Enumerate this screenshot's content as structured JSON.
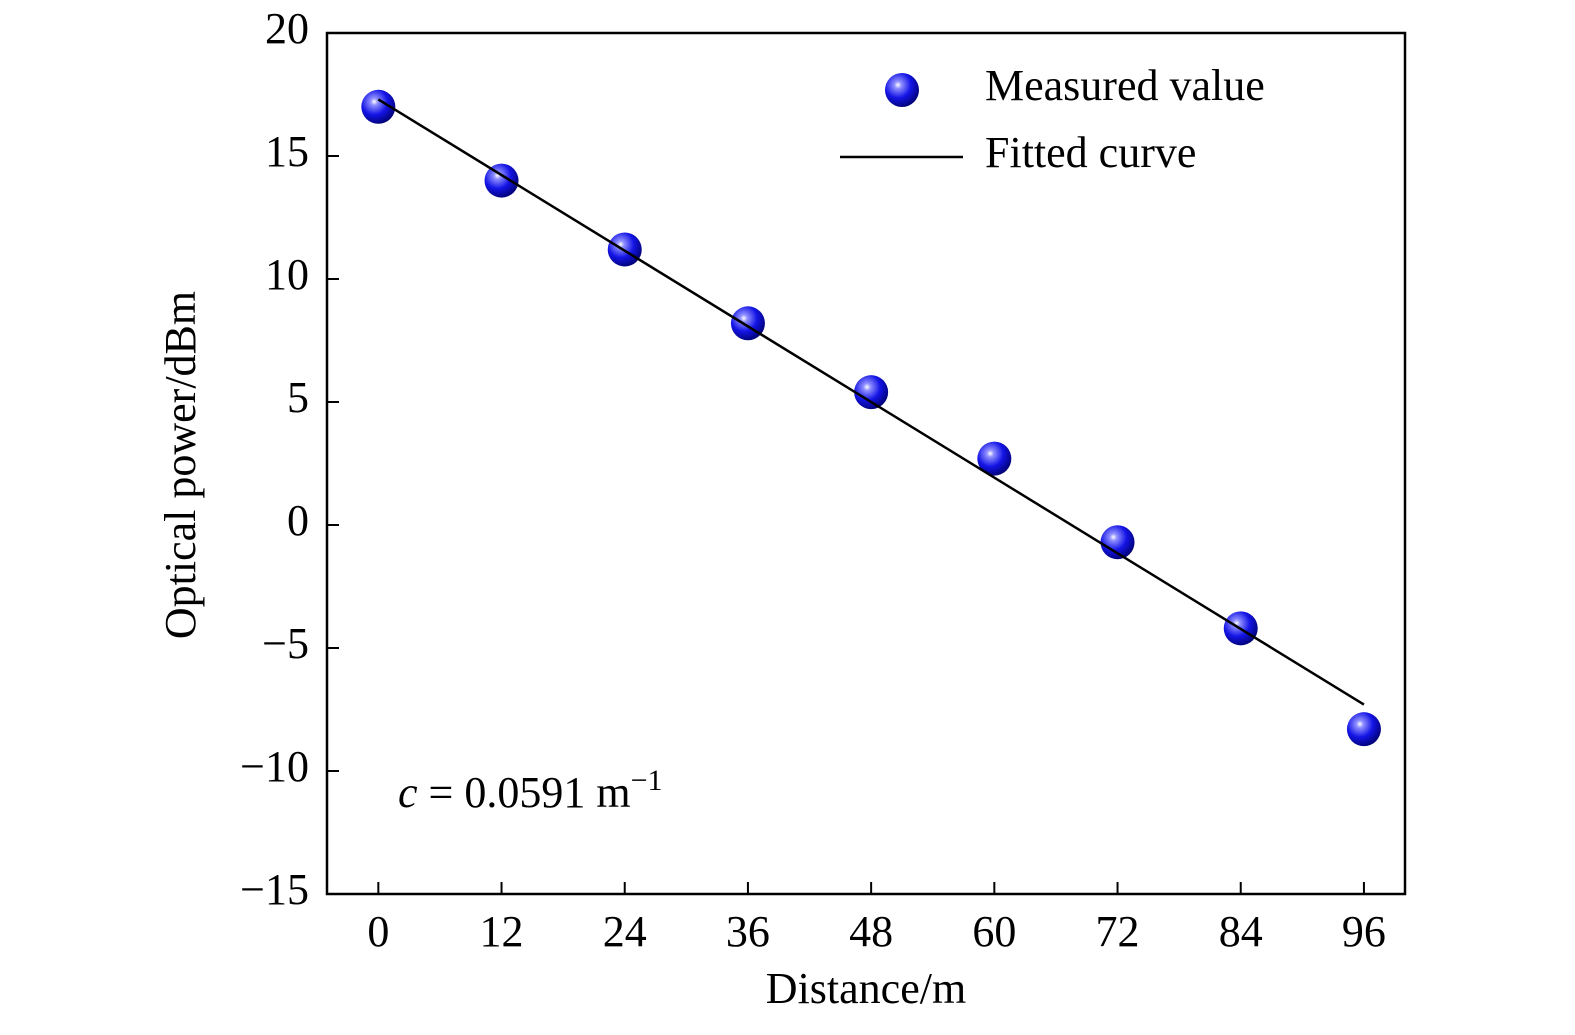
{
  "chart_data": {
    "type": "scatter",
    "xlabel": "Distance/m",
    "ylabel": "Optical power/dBm",
    "xlim": [
      -5,
      100
    ],
    "ylim": [
      -15,
      20
    ],
    "xticks": [
      0,
      12,
      24,
      36,
      48,
      60,
      72,
      84,
      96
    ],
    "yticks": [
      {
        "value": -15,
        "label": "−15"
      },
      {
        "value": -10,
        "label": "−10"
      },
      {
        "value": -5,
        "label": "−5"
      },
      0,
      5,
      10,
      15,
      20
    ],
    "legend": "upper right",
    "series": [
      {
        "name": "Measured value",
        "type": "scatter",
        "color": "#1414e6",
        "x": [
          0,
          12,
          24,
          36,
          48,
          60,
          72,
          84,
          96
        ],
        "values": [
          17.0,
          14.0,
          11.2,
          8.2,
          5.4,
          2.7,
          -0.7,
          -4.2,
          -8.3
        ]
      },
      {
        "name": "Fitted curve",
        "type": "line",
        "color": "#000000",
        "x": [
          0,
          96
        ],
        "values": [
          17.3,
          -7.3
        ]
      }
    ],
    "annotation": {
      "symbol": "c",
      "text": "= 0.0591 m",
      "exponent": "−1"
    }
  }
}
